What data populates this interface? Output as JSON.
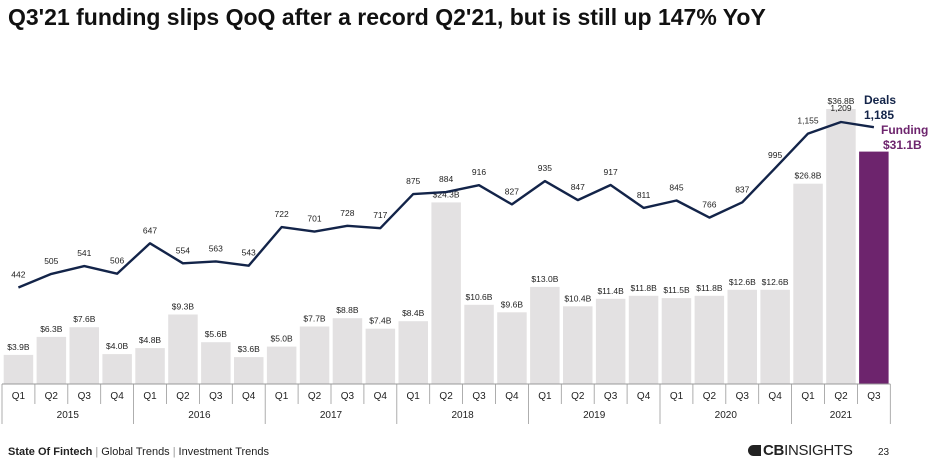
{
  "title": "Q3'21 funding slips QoQ after a record Q2'21, but is still up 147% YoY",
  "footer": {
    "report": "State Of Fintech",
    "crumb1": "Global Trends",
    "crumb2": "Investment Trends",
    "brand_cb": "CB",
    "brand_rest": "INSIGHTS",
    "page": "23"
  },
  "colors": {
    "bar": "#e3e1e2",
    "bar_highlight": "#6d246d",
    "line": "#132449",
    "funding_label": "#6d246d",
    "deals_label": "#132449"
  },
  "chart_data": {
    "type": "bar",
    "title": "Q3'21 funding slips QoQ after a record Q2'21, but is still up 147% YoY",
    "xlabel": "",
    "ylabel": "",
    "quarters": [
      "Q1",
      "Q2",
      "Q3",
      "Q4",
      "Q1",
      "Q2",
      "Q3",
      "Q4",
      "Q1",
      "Q2",
      "Q3",
      "Q4",
      "Q1",
      "Q2",
      "Q3",
      "Q4",
      "Q1",
      "Q2",
      "Q3",
      "Q4",
      "Q1",
      "Q2",
      "Q3",
      "Q4",
      "Q1",
      "Q2",
      "Q3"
    ],
    "years": [
      "2015",
      "2016",
      "2017",
      "2018",
      "2019",
      "2020",
      "2021"
    ],
    "ylim": [
      0,
      40
    ],
    "series": [
      {
        "name": "Funding",
        "unit": "$B",
        "values": [
          3.9,
          6.3,
          7.6,
          4.0,
          4.8,
          9.3,
          5.6,
          3.6,
          5.0,
          7.7,
          8.8,
          7.4,
          8.4,
          24.3,
          10.6,
          9.6,
          13.0,
          10.4,
          11.4,
          11.8,
          11.5,
          11.8,
          12.6,
          12.6,
          26.8,
          36.8,
          31.1
        ],
        "labels": [
          "$3.9B",
          "$6.3B",
          "$7.6B",
          "$4.0B",
          "$4.8B",
          "$9.3B",
          "$5.6B",
          "$3.6B",
          "$5.0B",
          "$7.7B",
          "$8.8B",
          "$7.4B",
          "$8.4B",
          "$24.3B",
          "$10.6B",
          "$9.6B",
          "$13.0B",
          "$10.4B",
          "$11.4B",
          "$11.8B",
          "$11.5B",
          "$11.8B",
          "$12.6B",
          "$12.6B",
          "$26.8B",
          "$36.8B",
          ""
        ]
      },
      {
        "name": "Deals",
        "values": [
          442,
          505,
          541,
          506,
          647,
          554,
          563,
          543,
          722,
          701,
          728,
          717,
          875,
          884,
          916,
          827,
          935,
          847,
          917,
          811,
          845,
          766,
          837,
          995,
          1155,
          1209,
          1185
        ],
        "labels": [
          "442",
          "505",
          "541",
          "506",
          "647",
          "554",
          "563",
          "543",
          "722",
          "701",
          "728",
          "717",
          "875",
          "884",
          "916",
          "827",
          "935",
          "847",
          "917",
          "811",
          "845",
          "766",
          "837",
          "995",
          "1,155",
          "1,209",
          ""
        ]
      }
    ],
    "legend": {
      "deals_title": "Deals",
      "deals_value": "1,185",
      "funding_title": "Funding",
      "funding_value": "$31.1B"
    }
  }
}
